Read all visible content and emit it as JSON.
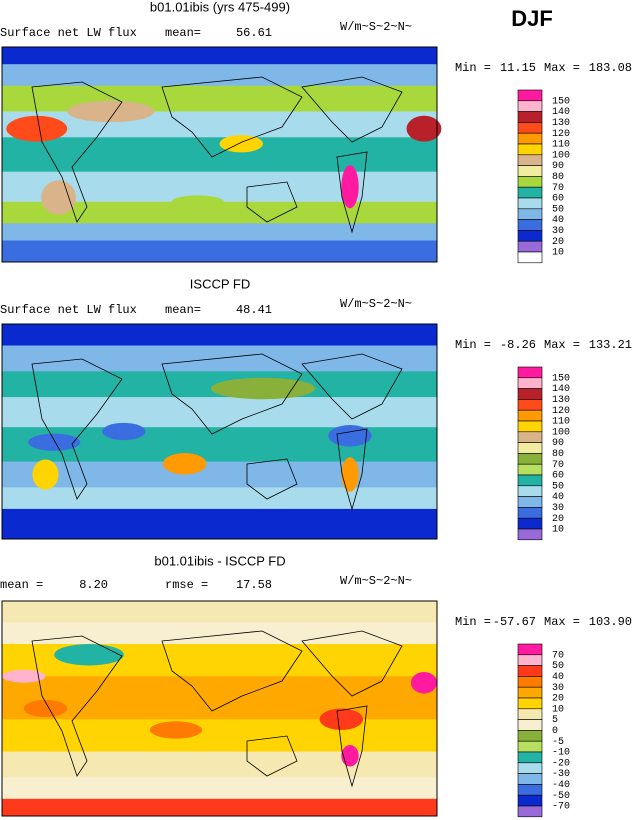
{
  "season": "DJF",
  "panels": [
    {
      "title": "b01.01ibis (yrs 475-499)",
      "variable": "Surface net LW flux",
      "stat_label": "mean=",
      "stat": "56.61",
      "units": "W/m~S~2~N~",
      "min_label": "Min =",
      "min": "11.15",
      "max_label": "Max =",
      "max": "183.08",
      "levels": [
        150,
        140,
        130,
        120,
        110,
        100,
        90,
        80,
        70,
        60,
        50,
        40,
        30,
        20,
        10
      ],
      "colors": [
        "#ff1aa0",
        "#ffb3cc",
        "#b8202a",
        "#ff4a1a",
        "#ff9a00",
        "#ffd400",
        "#d9b48a",
        "#f2eca0",
        "#a8d83c",
        "#22b3a4",
        "#a8dcec",
        "#7fb8e8",
        "#3a6ee0",
        "#0a2ad0",
        "#9a6ad8",
        "#ffffff"
      ]
    },
    {
      "title": "ISCCP FD",
      "variable": "Surface net LW flux",
      "stat_label": "mean=",
      "stat": "48.41",
      "units": "W/m~S~2~N~",
      "min_label": "Min =",
      "min": "-8.26",
      "max_label": "Max =",
      "max": "133.21",
      "levels": [
        150,
        140,
        130,
        120,
        110,
        100,
        90,
        80,
        70,
        60,
        50,
        40,
        30,
        20,
        10
      ],
      "colors": [
        "#ff1aa0",
        "#ffb3cc",
        "#b8202a",
        "#ff4a1a",
        "#ff9a00",
        "#ffd400",
        "#d9b48a",
        "#f2eca0",
        "#88b03a",
        "#b8e060",
        "#22b3a4",
        "#a8dcec",
        "#7fb8e8",
        "#3a6ee0",
        "#0a2ad0",
        "#9a6ad8"
      ]
    },
    {
      "title": "b01.01ibis - ISCCP FD",
      "stat_label": "mean =",
      "stat": "8.20",
      "stat2_label": "rmse =",
      "stat2": "17.58",
      "units": "W/m~S~2~N~",
      "min_label": "Min =",
      "min": "-57.67",
      "max_label": "Max =",
      "max": "103.90",
      "levels": [
        70,
        50,
        40,
        30,
        20,
        10,
        5,
        0,
        -5,
        -10,
        -20,
        -30,
        -40,
        -50,
        -70
      ],
      "colors": [
        "#ff1aa0",
        "#ffb3cc",
        "#ff3a1a",
        "#ff7a00",
        "#ffa800",
        "#ffd400",
        "#f5e8b0",
        "#f7efd0",
        "#88b03a",
        "#b8e060",
        "#22b3a4",
        "#a8dcec",
        "#7fb8e8",
        "#3a6ee0",
        "#0a2ad0",
        "#9a6ad8"
      ]
    }
  ]
}
